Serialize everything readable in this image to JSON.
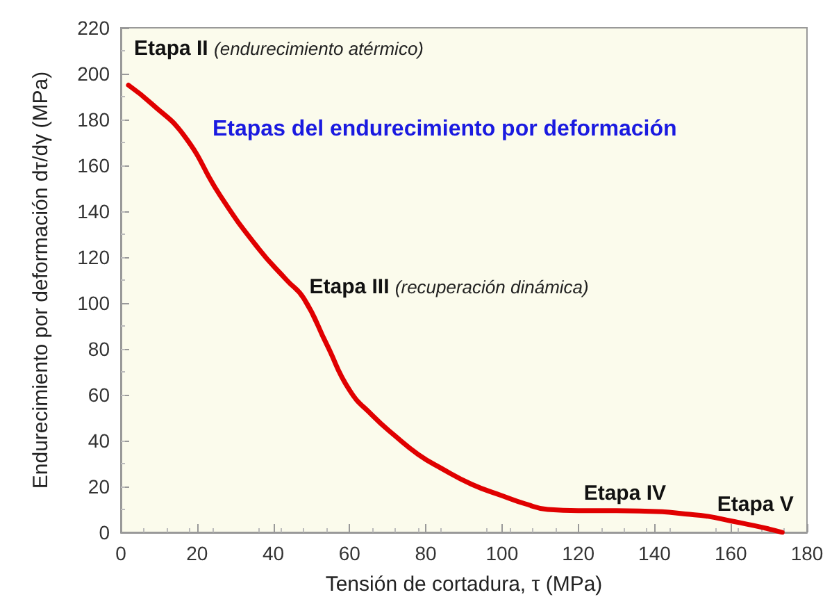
{
  "chart_data": {
    "type": "line",
    "title": "Etapas del endurecimiento por deformación",
    "xlabel": "Tensión de cortadura, τ (MPa)",
    "ylabel": "Endurecimiento por deformación dτ/dγ (MPa)",
    "xlim": [
      0,
      180
    ],
    "xticks": [
      0,
      20,
      40,
      60,
      80,
      100,
      120,
      140,
      160,
      180
    ],
    "ylim": [
      0,
      220
    ],
    "yticks": [
      0,
      20,
      40,
      60,
      80,
      100,
      120,
      140,
      160,
      180,
      200,
      220
    ],
    "grid": false,
    "marker": "none",
    "line_style": "solid",
    "annotations": [
      "Etapa II (endurecimiento atérmico)",
      "Etapa III (recuperación dinámica)",
      "Etapa IV",
      "Etapa V"
    ],
    "series": [
      {
        "color": "#e00000",
        "x": [
          2,
          8,
          16.6,
          26,
          36,
          43.5,
          48,
          54,
          60,
          66,
          72,
          78,
          84,
          92,
          100,
          106,
          112,
          120,
          130,
          142,
          148,
          154,
          160,
          166,
          170,
          173.5
        ],
        "values": [
          195,
          187,
          173,
          147,
          124,
          110,
          102,
          82,
          62,
          51,
          42,
          34,
          28,
          21,
          16,
          12.5,
          10,
          9.5,
          9.5,
          9,
          8,
          7,
          5,
          3,
          1.5,
          0
        ]
      }
    ]
  }
}
